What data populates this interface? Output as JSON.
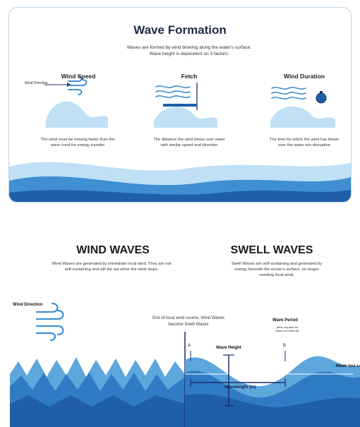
{
  "top_panel": {
    "title": "Wave Formation",
    "subtitle_line1": "Waves are formed by wind blowing along the water's surface.",
    "subtitle_line2": "Wave height is dependent on 3 factors:",
    "wind_direction_label": "Wind Direction",
    "factors": [
      {
        "heading": "Wind Speed",
        "text": "The wind must be moving faster than the wave crest for energy transfer"
      },
      {
        "heading": "Fetch",
        "text": "The distance the wind blows over water with similar speed and direction"
      },
      {
        "heading": "Wind Duration",
        "text": "The time for which the wind has blown over the water w/o disruption"
      }
    ]
  },
  "bottom_panel": {
    "wind_waves": {
      "heading": "WIND WAVES",
      "text": "Wind Waves are generated by immediate local wind. They are not self-sustaining and will die out when the wind stops."
    },
    "swell_waves": {
      "heading": "SWELL WAVES",
      "text": "Swell Waves are self-sustaining and generated by energy beneath the ocean's surface, no longer needing local wind."
    },
    "wind_direction_label": "Wind Direction",
    "transition_note": "End of local wind source, Wind Waves become Swell Waves",
    "wave_period_label": "Wave Period",
    "wave_period_note": "(time required for wave A to reach B)",
    "point_a": "A",
    "point_b": "B",
    "wave_height_label": "Wave Height",
    "wavelength_label": "Wavelength (m)",
    "mean_sea_level_label": "Mean Sea Level"
  },
  "colors": {
    "deep_blue": "#1f5fa8",
    "mid_blue": "#3f8fd2",
    "light_blue": "#bfe0f5",
    "navy": "#1c2b6b"
  }
}
